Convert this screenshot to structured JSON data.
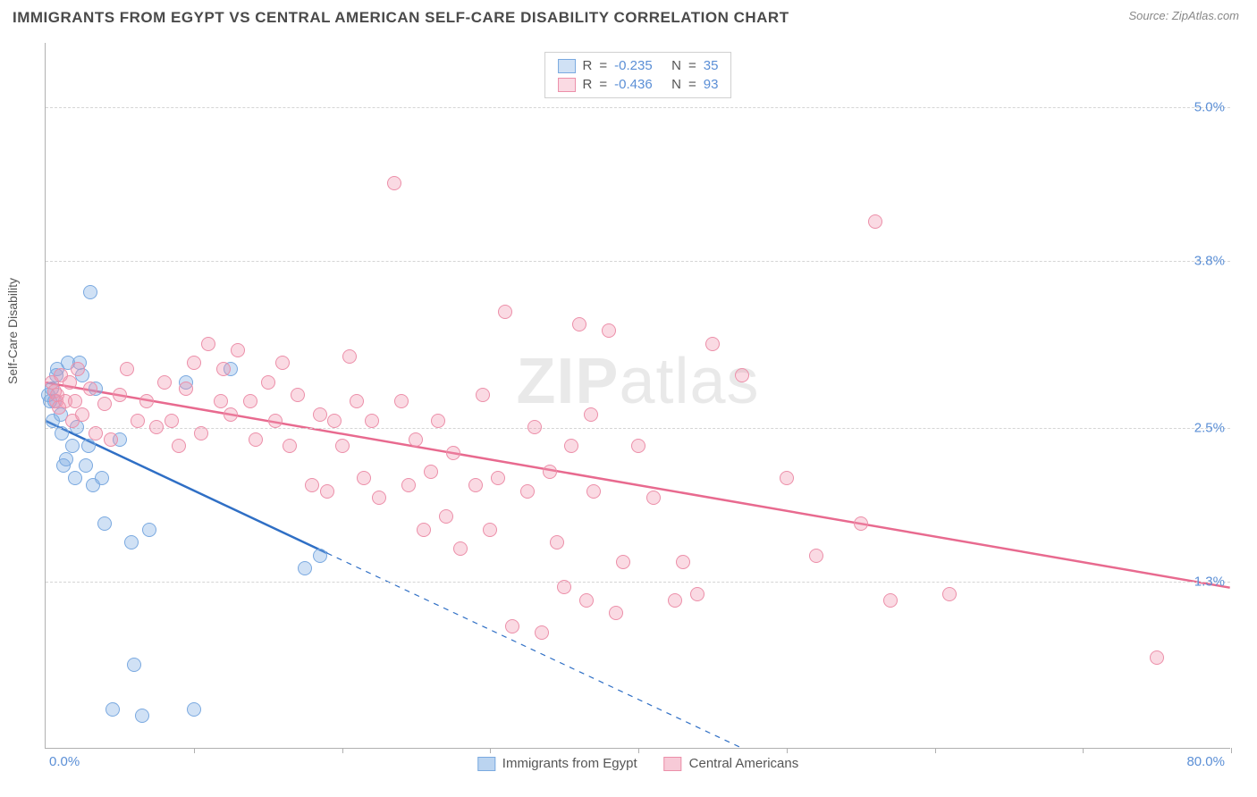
{
  "header": {
    "title": "IMMIGRANTS FROM EGYPT VS CENTRAL AMERICAN SELF-CARE DISABILITY CORRELATION CHART",
    "source": "Source: ZipAtlas.com"
  },
  "watermark": {
    "bold": "ZIP",
    "rest": "atlas"
  },
  "chart": {
    "type": "scatter",
    "ylabel": "Self-Care Disability",
    "xlim": [
      0,
      80
    ],
    "ylim": [
      0,
      5.5
    ],
    "xlabel_min": "0.0%",
    "xlabel_max": "80.0%",
    "yticks": [
      {
        "v": 1.3,
        "label": "1.3%"
      },
      {
        "v": 2.5,
        "label": "2.5%"
      },
      {
        "v": 3.8,
        "label": "3.8%"
      },
      {
        "v": 5.0,
        "label": "5.0%"
      }
    ],
    "xticks": [
      0,
      10,
      20,
      30,
      40,
      50,
      60,
      70,
      80
    ],
    "background_color": "#ffffff",
    "grid_color": "#d5d5d5",
    "axis_color": "#b0b0b0",
    "label_color": "#5b8fd6",
    "marker_radius": 8,
    "series": [
      {
        "name": "Immigrants from Egypt",
        "color_fill": "rgba(120,170,225,0.35)",
        "color_stroke": "#7aa9e0",
        "line_color": "#2f6fc5",
        "line_width": 2.5,
        "R": "-0.235",
        "N": "35",
        "trend": {
          "x1": 0,
          "y1": 2.55,
          "x2": 47,
          "y2": 0,
          "x_solid_end": 19
        },
        "points": [
          [
            0.2,
            2.75
          ],
          [
            0.3,
            2.7
          ],
          [
            0.4,
            2.8
          ],
          [
            0.5,
            2.55
          ],
          [
            0.6,
            2.7
          ],
          [
            0.7,
            2.9
          ],
          [
            0.8,
            2.95
          ],
          [
            1.0,
            2.6
          ],
          [
            1.1,
            2.45
          ],
          [
            1.2,
            2.2
          ],
          [
            1.4,
            2.25
          ],
          [
            1.5,
            3.0
          ],
          [
            1.8,
            2.35
          ],
          [
            2.0,
            2.1
          ],
          [
            2.1,
            2.5
          ],
          [
            2.3,
            3.0
          ],
          [
            2.5,
            2.9
          ],
          [
            2.7,
            2.2
          ],
          [
            2.9,
            2.35
          ],
          [
            3.0,
            3.55
          ],
          [
            3.2,
            2.05
          ],
          [
            3.4,
            2.8
          ],
          [
            3.8,
            2.1
          ],
          [
            4.0,
            1.75
          ],
          [
            4.5,
            0.3
          ],
          [
            5.0,
            2.4
          ],
          [
            5.8,
            1.6
          ],
          [
            6.0,
            0.65
          ],
          [
            6.5,
            0.25
          ],
          [
            7.0,
            1.7
          ],
          [
            9.5,
            2.85
          ],
          [
            10.0,
            0.3
          ],
          [
            12.5,
            2.95
          ],
          [
            17.5,
            1.4
          ],
          [
            18.5,
            1.5
          ]
        ]
      },
      {
        "name": "Central Americans",
        "color_fill": "rgba(240,150,175,0.35)",
        "color_stroke": "#ec8fa9",
        "line_color": "#e86a8f",
        "line_width": 2.5,
        "R": "-0.436",
        "N": "93",
        "trend": {
          "x1": 0,
          "y1": 2.85,
          "x2": 80,
          "y2": 1.25,
          "x_solid_end": 80
        },
        "points": [
          [
            0.4,
            2.85
          ],
          [
            0.6,
            2.78
          ],
          [
            0.7,
            2.7
          ],
          [
            0.8,
            2.75
          ],
          [
            0.9,
            2.65
          ],
          [
            1.0,
            2.9
          ],
          [
            1.3,
            2.7
          ],
          [
            1.6,
            2.85
          ],
          [
            1.8,
            2.55
          ],
          [
            2.0,
            2.7
          ],
          [
            2.2,
            2.95
          ],
          [
            2.5,
            2.6
          ],
          [
            3.0,
            2.8
          ],
          [
            3.4,
            2.45
          ],
          [
            4.0,
            2.68
          ],
          [
            4.4,
            2.4
          ],
          [
            5.0,
            2.75
          ],
          [
            5.5,
            2.95
          ],
          [
            6.2,
            2.55
          ],
          [
            6.8,
            2.7
          ],
          [
            7.5,
            2.5
          ],
          [
            8.0,
            2.85
          ],
          [
            8.5,
            2.55
          ],
          [
            9.0,
            2.35
          ],
          [
            9.5,
            2.8
          ],
          [
            10.0,
            3.0
          ],
          [
            10.5,
            2.45
          ],
          [
            11.0,
            3.15
          ],
          [
            11.8,
            2.7
          ],
          [
            12.0,
            2.95
          ],
          [
            12.5,
            2.6
          ],
          [
            13.0,
            3.1
          ],
          [
            13.8,
            2.7
          ],
          [
            14.2,
            2.4
          ],
          [
            15.0,
            2.85
          ],
          [
            15.5,
            2.55
          ],
          [
            16.0,
            3.0
          ],
          [
            16.5,
            2.35
          ],
          [
            17.0,
            2.75
          ],
          [
            18.0,
            2.05
          ],
          [
            18.5,
            2.6
          ],
          [
            19.0,
            2.0
          ],
          [
            19.5,
            2.55
          ],
          [
            20.0,
            2.35
          ],
          [
            21.0,
            2.7
          ],
          [
            21.5,
            2.1
          ],
          [
            22.0,
            2.55
          ],
          [
            22.5,
            1.95
          ],
          [
            23.5,
            4.4
          ],
          [
            24.0,
            2.7
          ],
          [
            24.5,
            2.05
          ],
          [
            25.0,
            2.4
          ],
          [
            25.5,
            1.7
          ],
          [
            26.0,
            2.15
          ],
          [
            26.5,
            2.55
          ],
          [
            27.0,
            1.8
          ],
          [
            27.5,
            2.3
          ],
          [
            28.0,
            1.55
          ],
          [
            29.0,
            2.05
          ],
          [
            29.5,
            2.75
          ],
          [
            30.0,
            1.7
          ],
          [
            30.5,
            2.1
          ],
          [
            31.0,
            3.4
          ],
          [
            31.5,
            0.95
          ],
          [
            32.5,
            2.0
          ],
          [
            33.0,
            2.5
          ],
          [
            33.5,
            0.9
          ],
          [
            34.0,
            2.15
          ],
          [
            35.0,
            1.25
          ],
          [
            35.5,
            2.35
          ],
          [
            36.0,
            3.3
          ],
          [
            36.5,
            1.15
          ],
          [
            37.0,
            2.0
          ],
          [
            38.0,
            3.25
          ],
          [
            38.5,
            1.05
          ],
          [
            39.0,
            1.45
          ],
          [
            40.0,
            2.35
          ],
          [
            41.0,
            1.95
          ],
          [
            42.5,
            1.15
          ],
          [
            43.0,
            1.45
          ],
          [
            44.0,
            1.2
          ],
          [
            45.0,
            3.15
          ],
          [
            47.0,
            2.9
          ],
          [
            55.0,
            1.75
          ],
          [
            56.0,
            4.1
          ],
          [
            57.0,
            1.15
          ],
          [
            75.0,
            0.7
          ],
          [
            61.0,
            1.2
          ],
          [
            50.0,
            2.1
          ],
          [
            52.0,
            1.5
          ],
          [
            34.5,
            1.6
          ],
          [
            36.8,
            2.6
          ],
          [
            20.5,
            3.05
          ]
        ]
      }
    ]
  },
  "legend_bottom": [
    {
      "label": "Immigrants from Egypt",
      "fill": "rgba(120,170,225,0.5)",
      "stroke": "#7aa9e0"
    },
    {
      "label": "Central Americans",
      "fill": "rgba(240,150,175,0.5)",
      "stroke": "#ec8fa9"
    }
  ]
}
